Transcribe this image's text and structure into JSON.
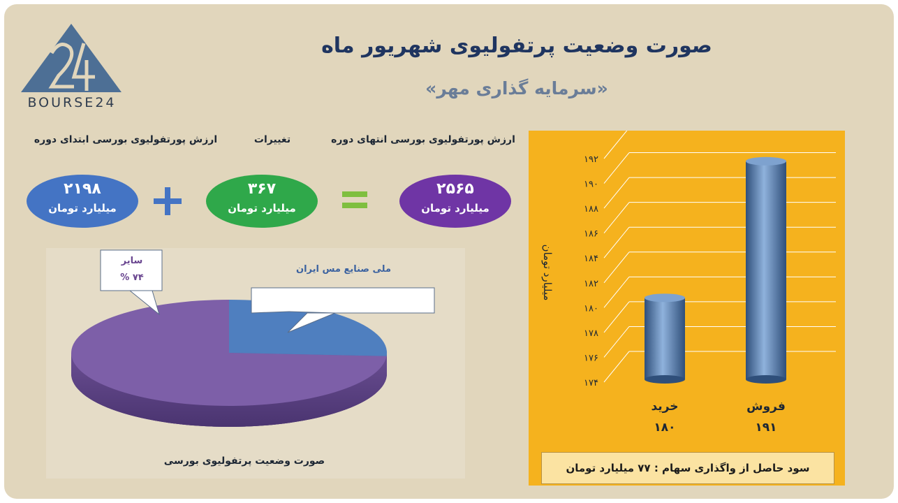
{
  "header": {
    "logo_text": "BOURSE24",
    "title": "صورت وضعیت پرتفولیوی شهریور ماه",
    "subtitle": "«سرمایه گذاری مهر»"
  },
  "summary": {
    "end_label": "ارزش پورتفولیوی بورسی انتهای دوره",
    "change_label": "تغییرات",
    "start_label": "ارزش پورتفولیوی بورسی ابتدای دوره",
    "end_value": "۲۵۶۵",
    "change_value": "۳۶۷",
    "start_value": "۲۱۹۸",
    "unit": "میلیارد تومان",
    "colors": {
      "end": "#6f35a5",
      "change": "#2fa84a",
      "start": "#4474c4",
      "plus": "#4474c4",
      "equals": "#7fbf3f"
    }
  },
  "chart_data": [
    {
      "type": "pie",
      "title": "صورت وضعیت پرتفولیوی بورسی",
      "slices": [
        {
          "label": "ملی صنایع مس ایران",
          "value": 26,
          "color": "#4f7fbf"
        },
        {
          "label": "سایر",
          "value": 74,
          "value_label": "۷۴ %",
          "color": "#7d5fa8"
        }
      ]
    },
    {
      "type": "bar",
      "categories": [
        "خرید",
        "فروش"
      ],
      "values": [
        180,
        191
      ],
      "value_labels": [
        "۱۸۰",
        "۱۹۱"
      ],
      "ylabel": "میلیارد تومان",
      "ylim": [
        174,
        192
      ],
      "yticks": [
        174,
        176,
        178,
        180,
        182,
        184,
        186,
        188,
        190,
        192
      ],
      "ytick_labels": [
        "۱۷۴",
        "۱۷۶",
        "۱۷۸",
        "۱۸۰",
        "۱۸۲",
        "۱۸۴",
        "۱۸۶",
        "۱۸۸",
        "۱۹۰",
        "۱۹۲"
      ],
      "grid": true,
      "bar_color": "#5b86b8",
      "background": "#f5b21e"
    }
  ],
  "profit": {
    "text": "سود حاصل از واگذاری سهام :  ۷۷ میلیارد تومان"
  }
}
